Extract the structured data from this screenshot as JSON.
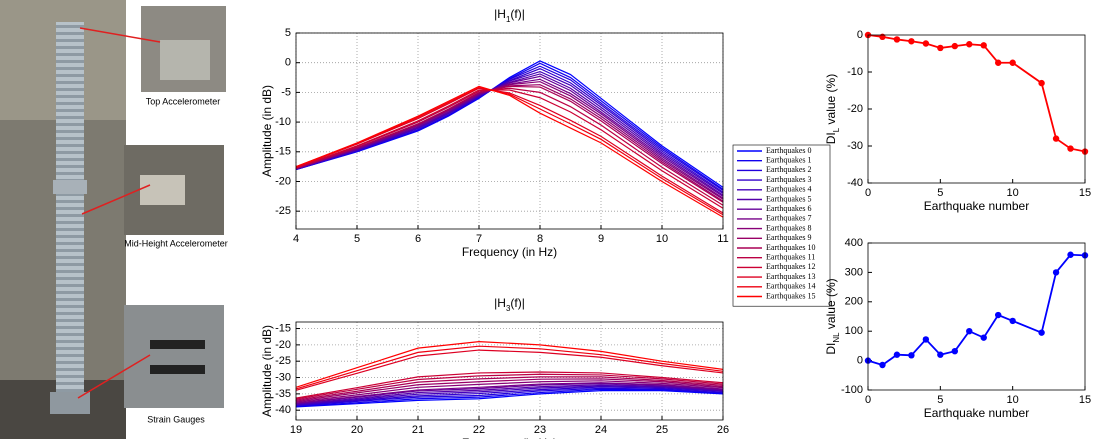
{
  "photo": {
    "labels": [
      "Top Accelerometer",
      "Mid-Height Accelerometer",
      "Strain Gauges"
    ]
  },
  "chart_data": [
    {
      "type": "line",
      "title": {
        "main": "|H",
        "sub": "1",
        "tail": "(f)|"
      },
      "xlabel": "Frequency (in Hz)",
      "ylabel": "Amplitude (in dB)",
      "xlim": [
        4,
        11
      ],
      "xticks": [
        4,
        5,
        6,
        7,
        8,
        9,
        10,
        11
      ],
      "ylim": [
        -28,
        5
      ],
      "yticks": [
        -25,
        -20,
        -15,
        -10,
        -5,
        0,
        5
      ],
      "grid": true,
      "legend": "right",
      "x": [
        4,
        5,
        6,
        6.5,
        7,
        7.5,
        8,
        8.5,
        9,
        10,
        11
      ],
      "series": [
        {
          "name": "Earthquakes 0",
          "color": "#0000ff",
          "values": [
            -18,
            -15,
            -11.5,
            -9,
            -6,
            -2.5,
            0.3,
            -2,
            -6,
            -14,
            -21
          ]
        },
        {
          "name": "Earthquakes 1",
          "color": "#1100ee",
          "values": [
            -18,
            -14.9,
            -11.4,
            -8.9,
            -5.9,
            -2.7,
            -0.1,
            -2.5,
            -6.4,
            -14.3,
            -21.3
          ]
        },
        {
          "name": "Earthquakes 2",
          "color": "#2200dd",
          "values": [
            -18,
            -14.9,
            -11.3,
            -8.8,
            -5.8,
            -2.8,
            -0.6,
            -2.9,
            -6.8,
            -14.6,
            -21.5
          ]
        },
        {
          "name": "Earthquakes 3",
          "color": "#3300cc",
          "values": [
            -17.9,
            -14.8,
            -11.1,
            -8.6,
            -5.7,
            -3,
            -1,
            -3.4,
            -7.1,
            -14.9,
            -21.8
          ]
        },
        {
          "name": "Earthquakes 4",
          "color": "#4400bb",
          "values": [
            -17.9,
            -14.7,
            -11,
            -8.5,
            -5.6,
            -3.1,
            -1.5,
            -3.8,
            -7.5,
            -15.2,
            -22
          ]
        },
        {
          "name": "Earthquakes 5",
          "color": "#5500aa",
          "values": [
            -17.9,
            -14.6,
            -10.9,
            -8.4,
            -5.5,
            -3.3,
            -1.9,
            -4.3,
            -7.9,
            -15.5,
            -22.3
          ]
        },
        {
          "name": "Earthquakes 6",
          "color": "#660099",
          "values": [
            -17.9,
            -14.6,
            -10.8,
            -8.3,
            -5.4,
            -3.4,
            -2.3,
            -4.7,
            -8.3,
            -15.8,
            -22.5
          ]
        },
        {
          "name": "Earthquakes 7",
          "color": "#770088",
          "values": [
            -17.8,
            -14.5,
            -10.6,
            -8.1,
            -5.3,
            -3.6,
            -2.8,
            -5.2,
            -8.6,
            -16.1,
            -22.8
          ]
        },
        {
          "name": "Earthquakes 8",
          "color": "#880077",
          "values": [
            -17.8,
            -14.4,
            -10.5,
            -8,
            -5.2,
            -3.7,
            -3.2,
            -5.6,
            -9,
            -16.4,
            -23
          ]
        },
        {
          "name": "Earthquakes 9",
          "color": "#990066",
          "values": [
            -17.8,
            -14.3,
            -10.4,
            -7.9,
            -5.1,
            -3.9,
            -3.7,
            -6.1,
            -9.4,
            -16.7,
            -23.3
          ]
        },
        {
          "name": "Earthquakes 10",
          "color": "#aa0055",
          "values": [
            -17.8,
            -14.3,
            -10.3,
            -7.8,
            -5,
            -4,
            -4.1,
            -6.5,
            -9.8,
            -17,
            -23.5
          ]
        },
        {
          "name": "Earthquakes 11",
          "color": "#bb0044",
          "values": [
            -17.7,
            -14.1,
            -10,
            -7.5,
            -4.8,
            -4.3,
            -5,
            -7.4,
            -10.5,
            -17.6,
            -24
          ]
        },
        {
          "name": "Earthquakes 12",
          "color": "#cc0033",
          "values": [
            -17.7,
            -14,
            -9.8,
            -7.3,
            -4.6,
            -4.6,
            -5.9,
            -8.3,
            -11.3,
            -18.2,
            -24.5
          ]
        },
        {
          "name": "Earthquakes 13",
          "color": "#dd0022",
          "values": [
            -17.6,
            -13.7,
            -9.4,
            -6.9,
            -4.3,
            -5.1,
            -7.2,
            -9.7,
            -12.4,
            -19.1,
            -25.3
          ]
        },
        {
          "name": "Earthquakes 14",
          "color": "#ee0011",
          "values": [
            -17.5,
            -13.6,
            -9.2,
            -6.7,
            -4.2,
            -5.3,
            -7.8,
            -10.3,
            -12.9,
            -19.5,
            -25.6
          ]
        },
        {
          "name": "Earthquakes 15",
          "color": "#ff0000",
          "values": [
            -17.5,
            -13.5,
            -9,
            -6.5,
            -4,
            -5.5,
            -8.5,
            -11,
            -13.5,
            -20,
            -26
          ]
        }
      ]
    },
    {
      "type": "line",
      "title": {
        "main": "|H",
        "sub": "3",
        "tail": "(f)|"
      },
      "xlabel": "Frequency (in Hz)",
      "ylabel": "Amplitude (in dB)",
      "xlim": [
        19,
        26
      ],
      "xticks": [
        19,
        20,
        21,
        22,
        23,
        24,
        25,
        26
      ],
      "ylim": [
        -43,
        -13
      ],
      "yticks": [
        -40,
        -35,
        -30,
        -25,
        -20,
        -15
      ],
      "grid": true,
      "x": [
        19,
        20,
        21,
        22,
        23,
        24,
        25,
        26
      ],
      "series": [
        {
          "color": "#0000ff",
          "values": [
            -39,
            -38,
            -37,
            -36.5,
            -35,
            -34,
            -34,
            -35
          ]
        },
        {
          "color": "#1100ee",
          "values": [
            -38.8,
            -37.7,
            -36.5,
            -36,
            -34.6,
            -33.6,
            -33.7,
            -34.8
          ]
        },
        {
          "color": "#2200dd",
          "values": [
            -38.6,
            -37.3,
            -36,
            -35.5,
            -34.1,
            -33.3,
            -33.5,
            -34.6
          ]
        },
        {
          "color": "#3300cc",
          "values": [
            -38.5,
            -37,
            -35.6,
            -34.9,
            -33.7,
            -32.9,
            -33.2,
            -34.3
          ]
        },
        {
          "color": "#4400bb",
          "values": [
            -38.3,
            -36.7,
            -35.1,
            -34.4,
            -33.2,
            -32.6,
            -32.9,
            -34.1
          ]
        },
        {
          "color": "#5500aa",
          "values": [
            -38.1,
            -36.4,
            -34.6,
            -33.9,
            -32.8,
            -32.2,
            -32.7,
            -33.9
          ]
        },
        {
          "color": "#660099",
          "values": [
            -37.9,
            -36,
            -34.1,
            -33.4,
            -32.3,
            -31.8,
            -32.4,
            -33.7
          ]
        },
        {
          "color": "#770088",
          "values": [
            -37.8,
            -35.8,
            -33.8,
            -33,
            -32,
            -31.6,
            -32.2,
            -33.5
          ]
        },
        {
          "color": "#880077",
          "values": [
            -37.5,
            -35.3,
            -33,
            -32.1,
            -31.3,
            -31,
            -31.8,
            -33.1
          ]
        },
        {
          "color": "#990066",
          "values": [
            -37.2,
            -34.7,
            -32.2,
            -31.3,
            -30.5,
            -30.4,
            -31.3,
            -32.8
          ]
        },
        {
          "color": "#aa0055",
          "values": [
            -36.9,
            -34.2,
            -31.4,
            -30.4,
            -29.8,
            -29.8,
            -30.9,
            -32.4
          ]
        },
        {
          "color": "#bb0044",
          "values": [
            -36.6,
            -33.6,
            -30.6,
            -29.5,
            -29,
            -29.2,
            -30.4,
            -32
          ]
        },
        {
          "color": "#cc0033",
          "values": [
            -36.3,
            -33.1,
            -29.8,
            -28.6,
            -28.3,
            -28.6,
            -30,
            -31.6
          ]
        },
        {
          "color": "#dd0022",
          "values": [
            -33.9,
            -28.7,
            -23.4,
            -21.6,
            -22.3,
            -23.8,
            -26.4,
            -28.6
          ]
        },
        {
          "color": "#ee0011",
          "values": [
            -33.5,
            -27.9,
            -22.3,
            -20.4,
            -21.2,
            -23,
            -25.7,
            -28.1
          ]
        },
        {
          "color": "#ff0000",
          "values": [
            -33,
            -27,
            -21,
            -19,
            -20,
            -22,
            -25,
            -27.5
          ]
        }
      ]
    },
    {
      "type": "line",
      "xlabel": "Earthquake number",
      "ylabel": {
        "main": "DI",
        "sub": "L",
        "tail": " value (%)"
      },
      "xlim": [
        0,
        15
      ],
      "xticks": [
        0,
        5,
        10,
        15
      ],
      "ylim": [
        -40,
        0
      ],
      "yticks": [
        -40,
        -30,
        -20,
        -10,
        0
      ],
      "grid": false,
      "markers": true,
      "x": [
        0,
        1,
        2,
        3,
        4,
        5,
        6,
        7,
        8,
        9,
        10,
        12,
        13,
        14,
        15
      ],
      "series": [
        {
          "color": "#ff0000",
          "values": [
            0,
            -0.5,
            -1.2,
            -1.7,
            -2.3,
            -3.5,
            -3,
            -2.5,
            -2.8,
            -7.5,
            -7.5,
            -13,
            -28,
            -30.7,
            -31.5
          ]
        }
      ]
    },
    {
      "type": "line",
      "xlabel": "Earthquake number",
      "ylabel": {
        "main": "DI",
        "sub": "NL",
        "tail": " value (%)"
      },
      "xlim": [
        0,
        15
      ],
      "xticks": [
        0,
        5,
        10,
        15
      ],
      "ylim": [
        -100,
        400
      ],
      "yticks": [
        -100,
        0,
        100,
        200,
        300,
        400
      ],
      "grid": false,
      "markers": true,
      "x": [
        0,
        1,
        2,
        3,
        4,
        5,
        6,
        7,
        8,
        9,
        10,
        12,
        13,
        14,
        15
      ],
      "series": [
        {
          "color": "#0000ff",
          "values": [
            0,
            -15,
            20,
            18,
            72,
            20,
            32,
            100,
            78,
            155,
            135,
            95,
            300,
            360,
            358
          ]
        }
      ]
    }
  ]
}
